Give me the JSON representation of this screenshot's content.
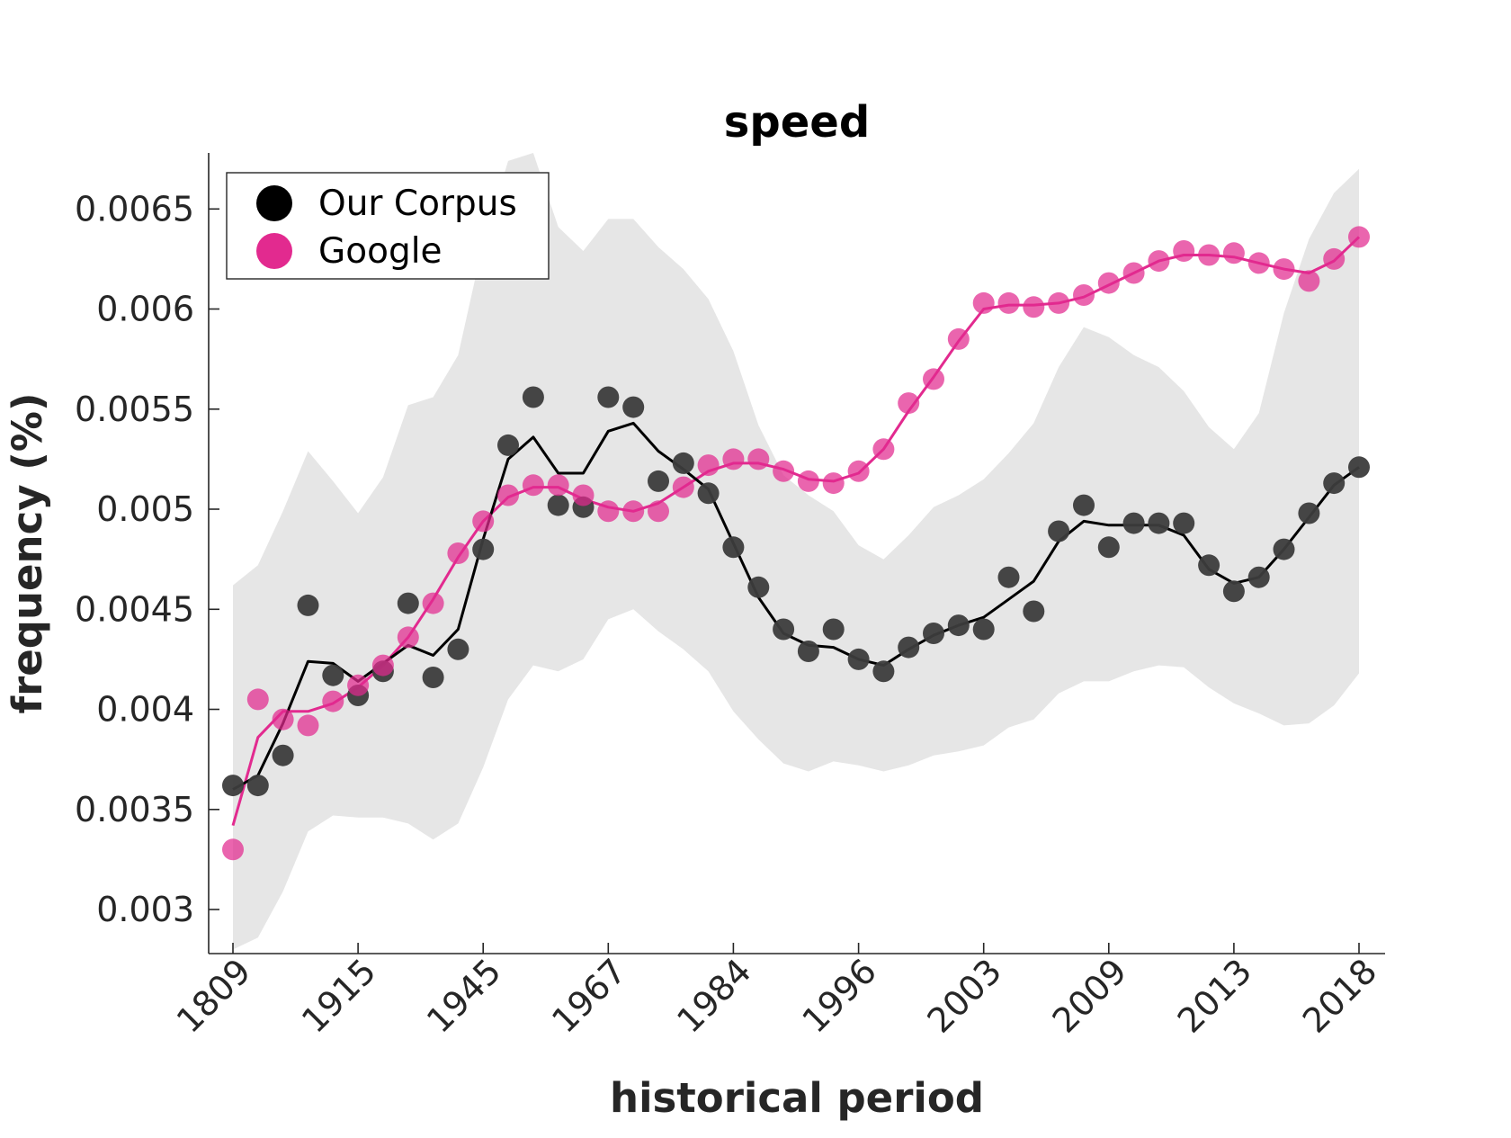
{
  "chart_data": {
    "type": "line",
    "title": "speed",
    "xlabel": "historical period",
    "ylabel": "frequency (%)",
    "x_tick_labels": [
      "1809",
      "1915",
      "1945",
      "1967",
      "1984",
      "1996",
      "2003",
      "2009",
      "2013",
      "2018"
    ],
    "ylim": [
      0.00278,
      0.00678
    ],
    "yticks": [
      0.003,
      0.0035,
      0.004,
      0.0045,
      0.005,
      0.0055,
      0.006,
      0.0065
    ],
    "ytick_labels": [
      "0.003",
      "0.0035",
      "0.004",
      "0.0045",
      "0.005",
      "0.0055",
      "0.006",
      "0.0065"
    ],
    "n_points": 46,
    "grid": false,
    "legend": {
      "placement": "top-left",
      "entries": [
        "Our Corpus",
        "Google"
      ]
    },
    "colors": {
      "corpus": "#000000",
      "corpus_points": "#3c3c3c",
      "google": "#e22a8f",
      "band": "#e6e6e6"
    },
    "series": [
      {
        "name": "Our Corpus",
        "points": [
          0.00362,
          0.00362,
          0.00377,
          0.00452,
          0.00417,
          0.00407,
          0.00419,
          0.00453,
          0.00416,
          0.0043,
          0.0048,
          0.00532,
          0.00556,
          0.00502,
          0.00501,
          0.00556,
          0.00551,
          0.00514,
          0.00523,
          0.00508,
          0.00481,
          0.00461,
          0.0044,
          0.00429,
          0.0044,
          0.00425,
          0.00419,
          0.00431,
          0.00438,
          0.00442,
          0.0044,
          0.00466,
          0.00449,
          0.00489,
          0.00502,
          0.00481,
          0.00493,
          0.00493,
          0.00493,
          0.00472,
          0.00459,
          0.00466,
          0.0048,
          0.00498,
          0.00513,
          0.00521
        ],
        "smoothed": [
          0.0036,
          0.00367,
          0.00393,
          0.00424,
          0.00423,
          0.00414,
          0.00423,
          0.00432,
          0.00427,
          0.0044,
          0.00485,
          0.00525,
          0.00536,
          0.00518,
          0.00518,
          0.00539,
          0.00543,
          0.00529,
          0.0052,
          0.0051,
          0.00483,
          0.00456,
          0.00438,
          0.00432,
          0.00431,
          0.00425,
          0.00422,
          0.0043,
          0.00437,
          0.00442,
          0.00446,
          0.00455,
          0.00464,
          0.00484,
          0.00494,
          0.00492,
          0.00492,
          0.00492,
          0.00487,
          0.0047,
          0.00463,
          0.00466,
          0.0048,
          0.00496,
          0.00512,
          0.00521
        ],
        "band_upper": [
          0.00462,
          0.00472,
          0.00499,
          0.00529,
          0.00514,
          0.00498,
          0.00516,
          0.00552,
          0.00556,
          0.00577,
          0.00633,
          0.00674,
          0.00678,
          0.00641,
          0.00629,
          0.00645,
          0.00645,
          0.00631,
          0.0062,
          0.00605,
          0.00579,
          0.00542,
          0.00517,
          0.00507,
          0.00499,
          0.00482,
          0.00475,
          0.00487,
          0.00501,
          0.00507,
          0.00515,
          0.00528,
          0.00543,
          0.00571,
          0.00591,
          0.00586,
          0.00577,
          0.00571,
          0.00559,
          0.00541,
          0.0053,
          0.00548,
          0.00598,
          0.00635,
          0.00658,
          0.0067
        ],
        "band_lower": [
          0.0028,
          0.00286,
          0.00309,
          0.00339,
          0.00347,
          0.00346,
          0.00346,
          0.00343,
          0.00335,
          0.00343,
          0.00371,
          0.00405,
          0.00422,
          0.00419,
          0.00425,
          0.00445,
          0.0045,
          0.00439,
          0.0043,
          0.00419,
          0.00399,
          0.00385,
          0.00373,
          0.00369,
          0.00374,
          0.00372,
          0.00369,
          0.00372,
          0.00377,
          0.00379,
          0.00382,
          0.00391,
          0.00395,
          0.00408,
          0.00414,
          0.00414,
          0.00419,
          0.00422,
          0.00421,
          0.00411,
          0.00403,
          0.00398,
          0.00392,
          0.00393,
          0.00402,
          0.00418
        ]
      },
      {
        "name": "Google",
        "points": [
          0.0033,
          0.00405,
          0.00395,
          0.00392,
          0.00404,
          0.00412,
          0.00422,
          0.00436,
          0.00453,
          0.00478,
          0.00494,
          0.00507,
          0.00512,
          0.00512,
          0.00507,
          0.00499,
          0.00499,
          0.00499,
          0.00511,
          0.00522,
          0.00525,
          0.00525,
          0.00519,
          0.00514,
          0.00513,
          0.00519,
          0.0053,
          0.00553,
          0.00565,
          0.00585,
          0.00603,
          0.00603,
          0.00601,
          0.00603,
          0.00607,
          0.00613,
          0.00618,
          0.00624,
          0.00629,
          0.00627,
          0.00628,
          0.00623,
          0.0062,
          0.00614,
          0.00625,
          0.00636
        ],
        "smoothed": [
          0.00342,
          0.00386,
          0.00399,
          0.00399,
          0.00403,
          0.00411,
          0.00422,
          0.00436,
          0.00455,
          0.00476,
          0.00494,
          0.00506,
          0.00511,
          0.00511,
          0.00505,
          0.00501,
          0.00499,
          0.00503,
          0.00511,
          0.00519,
          0.00523,
          0.00523,
          0.0052,
          0.00515,
          0.00514,
          0.00518,
          0.0053,
          0.00549,
          0.00566,
          0.00584,
          0.006,
          0.00602,
          0.00602,
          0.00603,
          0.00606,
          0.00612,
          0.00618,
          0.00624,
          0.00627,
          0.00627,
          0.00626,
          0.00623,
          0.0062,
          0.00618,
          0.00624,
          0.00636
        ]
      }
    ]
  }
}
